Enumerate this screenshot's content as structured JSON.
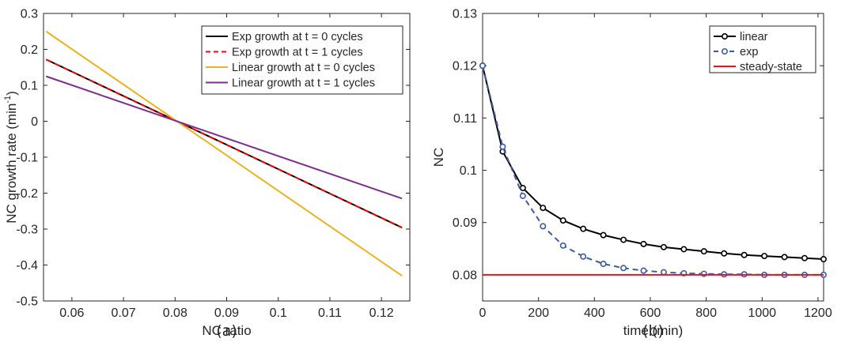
{
  "chart_data": [
    {
      "panel_label": "(a)",
      "type": "line",
      "xlabel": "NC ratio",
      "ylabel": "NC growth rate (min",
      "ylabel_sup": "-1",
      "ylabel_tail": ")",
      "xlim": [
        0.0545,
        0.1255
      ],
      "ylim": [
        -0.5,
        0.3
      ],
      "xticks": [
        0.06,
        0.07,
        0.08,
        0.09,
        0.1,
        0.11,
        0.12
      ],
      "xtick_labels": [
        "0.06",
        "0.07",
        "0.08",
        "0.09",
        "0.1",
        "0.11",
        "0.12"
      ],
      "yticks": [
        -0.5,
        -0.4,
        -0.3,
        -0.2,
        -0.1,
        0,
        0.1,
        0.2,
        0.3
      ],
      "ytick_labels": [
        "-0.5",
        "-0.4",
        "-0.3",
        "-0.2",
        "-0.1",
        "0",
        "0.1",
        "0.2",
        "0.3"
      ],
      "grid": false,
      "legend_position": "top-right",
      "series": [
        {
          "name": "Exp growth at t = 0 cycles",
          "color": "#000000",
          "dash": "",
          "x": [
            0.055,
            0.124
          ],
          "y": [
            0.172,
            -0.296
          ]
        },
        {
          "name": "Exp growth at t = 1 cycles",
          "color": "#ff0000",
          "dash": "7,5",
          "x": [
            0.055,
            0.124
          ],
          "y": [
            0.172,
            -0.296
          ]
        },
        {
          "name": "Linear growth at t = 0 cycles",
          "color": "#edb120",
          "dash": "",
          "x": [
            0.055,
            0.124
          ],
          "y": [
            0.25,
            -0.43
          ]
        },
        {
          "name": "Linear growth at t = 1 cycles",
          "color": "#7e2f8e",
          "dash": "",
          "x": [
            0.055,
            0.124
          ],
          "y": [
            0.125,
            -0.215
          ]
        }
      ]
    },
    {
      "panel_label": "(b)",
      "type": "line",
      "xlabel": "time (min)",
      "ylabel": "NC",
      "xlim": [
        0,
        1220
      ],
      "ylim": [
        0.075,
        0.13
      ],
      "xticks": [
        0,
        200,
        400,
        600,
        800,
        1000,
        1200
      ],
      "xtick_labels": [
        "0",
        "200",
        "400",
        "600",
        "800",
        "1000",
        "1200"
      ],
      "yticks": [
        0.08,
        0.09,
        0.1,
        0.11,
        0.12,
        0.13
      ],
      "ytick_labels": [
        "0.08",
        "0.09",
        "0.1",
        "0.11",
        "0.12",
        "0.13"
      ],
      "grid": false,
      "legend_position": "top-right",
      "series": [
        {
          "name": "linear",
          "color": "#000000",
          "dash": "",
          "marker": "circle",
          "x": [
            0,
            72,
            144,
            216,
            288,
            360,
            432,
            504,
            576,
            648,
            720,
            792,
            864,
            936,
            1008,
            1080,
            1152,
            1220
          ],
          "y": [
            0.12,
            0.1036,
            0.0966,
            0.0928,
            0.0904,
            0.0888,
            0.0876,
            0.0867,
            0.0859,
            0.0853,
            0.0849,
            0.0845,
            0.0841,
            0.0838,
            0.0836,
            0.0834,
            0.0832,
            0.083
          ]
        },
        {
          "name": "exp",
          "color": "#3b5ba5",
          "dash": "7,5",
          "marker": "circle",
          "x": [
            0,
            72,
            144,
            216,
            288,
            360,
            432,
            504,
            576,
            648,
            720,
            792,
            864,
            936,
            1008,
            1080,
            1152,
            1220
          ],
          "y": [
            0.12,
            0.1045,
            0.0951,
            0.0893,
            0.0856,
            0.0835,
            0.0821,
            0.0813,
            0.0808,
            0.0805,
            0.0803,
            0.0802,
            0.0801,
            0.0801,
            0.08,
            0.08,
            0.08,
            0.08
          ]
        },
        {
          "name": "steady-state",
          "color": "#e8141b",
          "dash": "",
          "marker": "none",
          "x": [
            0,
            1220
          ],
          "y": [
            0.08,
            0.08
          ]
        }
      ]
    }
  ]
}
